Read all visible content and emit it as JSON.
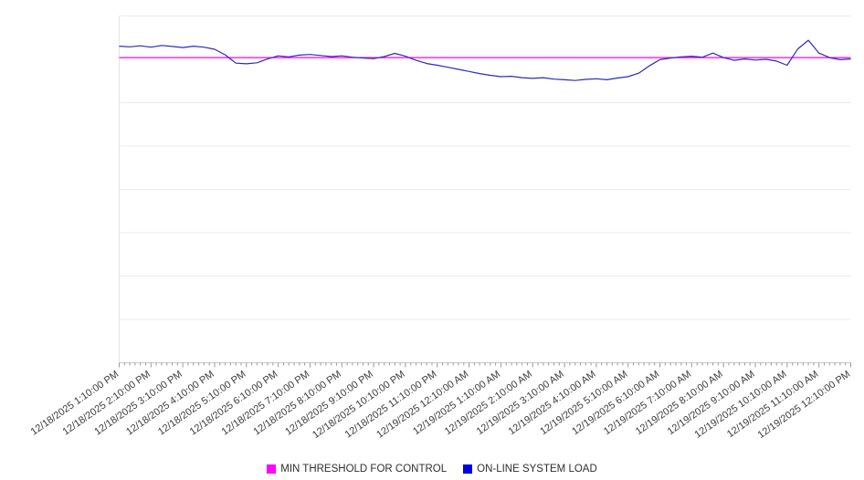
{
  "chart_data": {
    "type": "line",
    "title": "",
    "xlabel": "",
    "ylabel": "",
    "ylim": [
      0,
      100
    ],
    "grid": true,
    "grid_divisions": 8,
    "legend_position": "bottom",
    "x_minutes_per_point": 20,
    "x_tick_labels": [
      "12/18/2025 1:10:00 PM",
      "12/18/2025 2:10:00 PM",
      "12/18/2025 3:10:00 PM",
      "12/18/2025 4:10:00 PM",
      "12/18/2025 5:10:00 PM",
      "12/18/2025 6:10:00 PM",
      "12/18/2025 7:10:00 PM",
      "12/18/2025 8:10:00 PM",
      "12/18/2025 9:10:00 PM",
      "12/18/2025 10:10:00 PM",
      "12/18/2025 11:10:00 PM",
      "12/19/2025 12:10:00 AM",
      "12/19/2025 1:10:00 AM",
      "12/19/2025 2:10:00 AM",
      "12/19/2025 3:10:00 AM",
      "12/19/2025 4:10:00 AM",
      "12/19/2025 5:10:00 AM",
      "12/19/2025 6:10:00 AM",
      "12/19/2025 7:10:00 AM",
      "12/19/2025 8:10:00 AM",
      "12/19/2025 9:10:00 AM",
      "12/19/2025 10:10:00 AM",
      "12/19/2025 11:10:00 AM",
      "12/19/2025 12:10:00 PM"
    ],
    "series": [
      {
        "name": "MIN THRESHOLD FOR CONTROL",
        "type": "threshold",
        "value": 88,
        "color": "#ff00ff"
      },
      {
        "name": "ON-LINE SYSTEM LOAD",
        "type": "line",
        "color": "#2b2bbe",
        "values": [
          91.3,
          91.1,
          91.4,
          91.0,
          91.5,
          91.2,
          90.9,
          91.3,
          91.0,
          90.4,
          88.8,
          86.4,
          86.2,
          86.5,
          87.6,
          88.5,
          88.2,
          88.7,
          88.9,
          88.6,
          88.3,
          88.5,
          88.1,
          87.9,
          87.7,
          88.3,
          89.2,
          88.4,
          87.2,
          86.3,
          85.8,
          85.2,
          84.6,
          84.0,
          83.4,
          82.9,
          82.5,
          82.6,
          82.2,
          82.0,
          82.2,
          81.8,
          81.6,
          81.4,
          81.7,
          81.9,
          81.6,
          82.1,
          82.5,
          83.5,
          85.6,
          87.4,
          87.9,
          88.2,
          88.4,
          88.1,
          89.3,
          88.0,
          87.2,
          87.6,
          87.3,
          87.5,
          87.0,
          85.8,
          90.5,
          93.0,
          89.3,
          88.0,
          87.4,
          87.6
        ]
      }
    ]
  }
}
